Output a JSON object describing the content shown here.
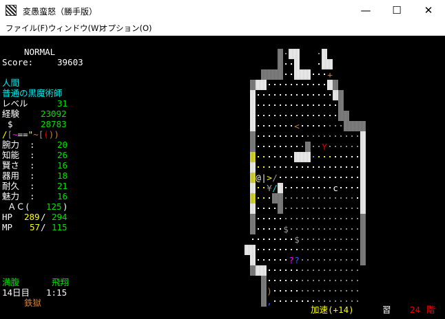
{
  "window": {
    "title": "変愚蛮怒（勝手版）",
    "controls": {
      "minimize": "—",
      "maximize": "☐",
      "close": "✕"
    }
  },
  "menu": [
    "ファイル(F)",
    "ウィンドウ(W)",
    "オプション(O)"
  ],
  "status": {
    "mode": "NORMAL",
    "score_label": "Score:",
    "score": "39603",
    "race": "人間",
    "title": "普通の黒魔術師",
    "level_label": "レベル",
    "level": "31",
    "exp_label": "経験",
    "exp": "23092",
    "gold_label": "$",
    "gold": "28783",
    "equipment": [
      {
        "ch": "/",
        "color": "#ffff00"
      },
      {
        "ch": "[",
        "color": "#9a9a9a"
      },
      {
        "ch": "~",
        "color": "#ff00ff"
      },
      {
        "ch": "=",
        "color": "#ffffff"
      },
      {
        "ch": "=",
        "color": "#ffffff"
      },
      {
        "ch": "\"",
        "color": "#ffff00"
      },
      {
        "ch": "~",
        "color": "#c8803c"
      },
      {
        "ch": "[",
        "color": "#9a9a9a"
      },
      {
        "ch": "(",
        "color": "#e00000"
      },
      {
        "ch": ")",
        "color": "#c8803c"
      },
      {
        "ch": ")",
        "color": "#c8803c"
      }
    ],
    "stats": [
      {
        "label": "腕力",
        "value": "20"
      },
      {
        "label": "知能",
        "value": "26"
      },
      {
        "label": "賢さ",
        "value": "16"
      },
      {
        "label": "器用",
        "value": "18"
      },
      {
        "label": "耐久",
        "value": "21"
      },
      {
        "label": "魅力",
        "value": "16"
      }
    ],
    "ac_label": "ＡＣ(",
    "ac": "125",
    "ac_close": ")",
    "hp_label": "HP",
    "hp": "289",
    "hp_max": "294",
    "mp_label": "MP",
    "mp": "57",
    "mp_max": "115",
    "hunger": "満腹",
    "levitation": "飛翔",
    "day": "14日目",
    "time": "1:15",
    "dungeon": "鉄獄"
  },
  "bottom": {
    "speed": "加速(+14)",
    "study": "習",
    "depth": "24",
    "depth_unit": "階"
  },
  "map": {
    "legend": {
      "#": "granite-lit",
      "%": "granite-dark",
      "&": "granite-yellow",
      ".": "floor-lit",
      ":": "floor-dark",
      ",": "floor-yellow"
    },
    "rows": [
      "      %:##   :#       ",
      "      %..#   .##      ",
      "   %%%%..###....      ",
      " %##...........#%     ",
      " #..............#%    ",
      " #...............%    ",
      " #...............%%   ",
      " #.............:::%%%%",
      " %.........::::::::::#",
      " %........:%:::::::::#",
      " &,,.....###:,,,.....#",
      " #,,,................#",
      " &...................#",
      " #,,..#..............#",
      " &,,.%%:::::::::::::.#",
      " #....%::::::::::::::#",
      " %.....::::::::::::::%",
      " %......:::::::::::::%",
      " .........:::::::::::%",
      "##........:::::::::::%",
      " #........:::::::::::%",
      " %##......::::::::::: ",
      "   %......::::::::::: ",
      "   %......::::::::::: ",
      "   %.........:::::::: "
    ],
    "objects": [
      {
        "row": 2,
        "col": 15,
        "ch": "+",
        "color": "#c8803c",
        "name": "door"
      },
      {
        "row": 7,
        "col": 9,
        "ch": "<",
        "color": "#c8803c",
        "name": "up-staircase"
      },
      {
        "row": 9,
        "col": 14,
        "ch": "Y",
        "color": "#e00000",
        "name": "monster"
      },
      {
        "row": 12,
        "col": 2,
        "ch": "@",
        "color": "#ffffff",
        "name": "player"
      },
      {
        "row": 12,
        "col": 3,
        "ch": "|",
        "color": "#ffffff",
        "name": "weapon-item"
      },
      {
        "row": 12,
        "col": 4,
        "ch": ">",
        "color": "#ffff00",
        "name": "down-staircase"
      },
      {
        "row": 12,
        "col": 5,
        "ch": "/",
        "color": "#9a9a9a",
        "name": "polearm-item"
      },
      {
        "row": 13,
        "col": 4,
        "ch": "¥",
        "color": "#9a9a9a",
        "name": "item"
      },
      {
        "row": 13,
        "col": 5,
        "ch": "/",
        "color": "#00e8e8",
        "name": "polearm-item"
      },
      {
        "row": 13,
        "col": 16,
        "ch": "c",
        "color": "#ffffff",
        "name": "monster"
      },
      {
        "row": 17,
        "col": 7,
        "ch": "$",
        "color": "#9a9a9a",
        "name": "gold"
      },
      {
        "row": 18,
        "col": 9,
        "ch": "$",
        "color": "#9a9a9a",
        "name": "gold"
      },
      {
        "row": 20,
        "col": 8,
        "ch": "?",
        "color": "#ff00ff",
        "name": "scroll"
      },
      {
        "row": 20,
        "col": 9,
        "ch": "?",
        "color": "#3060ff",
        "name": "scroll"
      },
      {
        "row": 23,
        "col": 4,
        "ch": ")",
        "color": "#c8803c",
        "name": "shield-item"
      },
      {
        "row": 24,
        "col": 4,
        "ch": ",",
        "color": "#3060ff",
        "name": "item"
      }
    ]
  }
}
